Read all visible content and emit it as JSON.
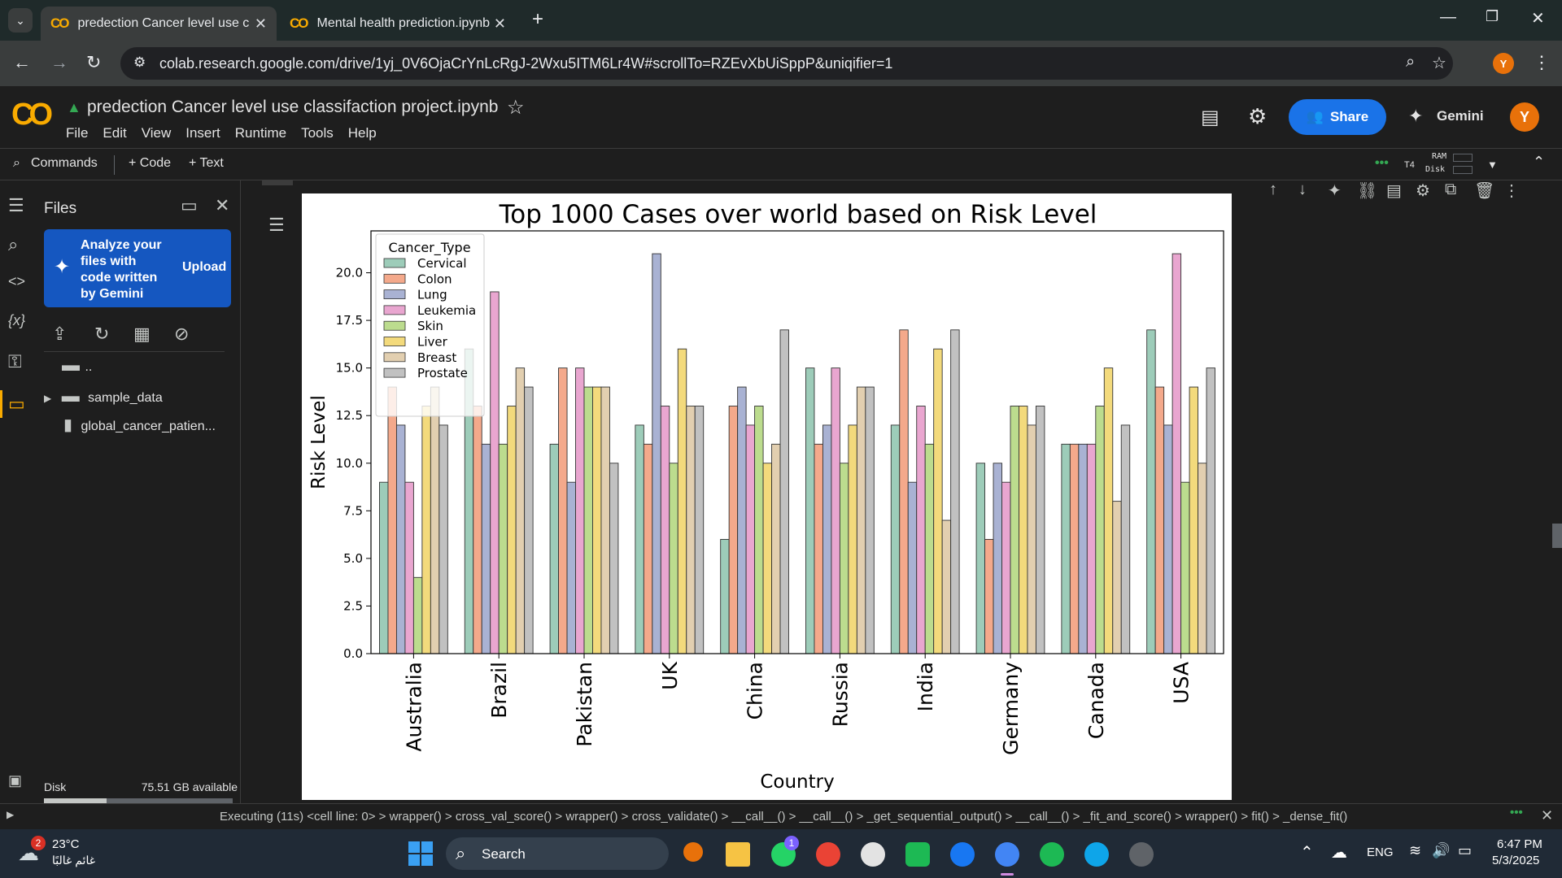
{
  "browser": {
    "tabs": [
      {
        "label": "predection Cancer level use clas",
        "active": true
      },
      {
        "label": "Mental health prediction.ipynb",
        "active": false
      }
    ],
    "url": "colab.research.google.com/drive/1yj_0V6OjaCrYnLcRgJ-2Wxu5ITM6Lr4W#scrollTo=RZEvXbUiSppP&uniqifier=1",
    "profile_initial": "Y"
  },
  "colab": {
    "logo": "CO",
    "notebook_title": "predection Cancer level use classifaction project.ipynb",
    "menu": [
      "File",
      "Edit",
      "View",
      "Insert",
      "Runtime",
      "Tools",
      "Help"
    ],
    "share_label": "Share",
    "gemini_label": "Gemini",
    "user_initial": "Y"
  },
  "toolbar": {
    "commands": "Commands",
    "code": "+ Code",
    "text": "+ Text",
    "runtime": "T4",
    "ram": "RAM",
    "disk": "Disk"
  },
  "files": {
    "title": "Files",
    "gemini_prompt": "Analyze your files with code written by Gemini",
    "upload_label": "Upload",
    "entries": [
      {
        "name": ".."
      },
      {
        "name": "sample_data"
      },
      {
        "name": "global_cancer_patien..."
      }
    ],
    "disk_label": "Disk",
    "disk_available": "75.51 GB available",
    "disk_used_fraction": 0.33
  },
  "status": {
    "text": "Executing (11s) <cell line: 0> > wrapper() > cross_val_score() > wrapper() > cross_validate() > __call__() > __call__() > _get_sequential_output() > __call__() > _fit_and_score() > wrapper() > fit() > _dense_fit()"
  },
  "taskbar": {
    "weather_temp": "23°C",
    "weather_desc": "غائم غالبًا",
    "weather_badge": "2",
    "search_label": "Search",
    "whatsapp_badge": "1",
    "lang": "ENG",
    "time": "6:47 PM",
    "date": "5/3/2025"
  },
  "chart_data": {
    "type": "bar",
    "title": "Top 1000 Cases over world based on Risk Level",
    "xlabel": "Country",
    "ylabel": "Risk Level",
    "ylim": [
      0,
      22.2
    ],
    "yticks": [
      "0.0",
      "2.5",
      "5.0",
      "7.5",
      "10.0",
      "12.5",
      "15.0",
      "17.5",
      "20.0"
    ],
    "legend_title": "Cancer_Type",
    "legend_position": "top-left",
    "categories": [
      "Australia",
      "Brazil",
      "Pakistan",
      "UK",
      "China",
      "Russia",
      "India",
      "Germany",
      "Canada",
      "USA"
    ],
    "colors": [
      "#9dccb9",
      "#f4a98b",
      "#a9b2d3",
      "#e9a6d0",
      "#bcdc8e",
      "#f3da7c",
      "#e2cfb0",
      "#c1c1c1"
    ],
    "series": [
      {
        "name": "Cervical",
        "values": [
          9,
          16,
          11,
          12,
          6,
          15,
          12,
          10,
          11,
          17
        ]
      },
      {
        "name": "Colon",
        "values": [
          14,
          13,
          15,
          11,
          13,
          11,
          17,
          6,
          11,
          14
        ]
      },
      {
        "name": "Lung",
        "values": [
          12,
          11,
          9,
          21,
          14,
          12,
          9,
          10,
          11,
          12
        ]
      },
      {
        "name": "Leukemia",
        "values": [
          9,
          19,
          15,
          13,
          12,
          15,
          13,
          9,
          11,
          21
        ]
      },
      {
        "name": "Skin",
        "values": [
          4,
          11,
          14,
          10,
          13,
          10,
          11,
          13,
          13,
          9
        ]
      },
      {
        "name": "Liver",
        "values": [
          13,
          13,
          14,
          16,
          10,
          12,
          16,
          13,
          15,
          14
        ]
      },
      {
        "name": "Breast",
        "values": [
          14,
          15,
          14,
          13,
          11,
          14,
          7,
          12,
          8,
          10
        ]
      },
      {
        "name": "Prostate",
        "values": [
          12,
          14,
          10,
          13,
          17,
          14,
          17,
          13,
          12,
          15
        ]
      }
    ]
  }
}
